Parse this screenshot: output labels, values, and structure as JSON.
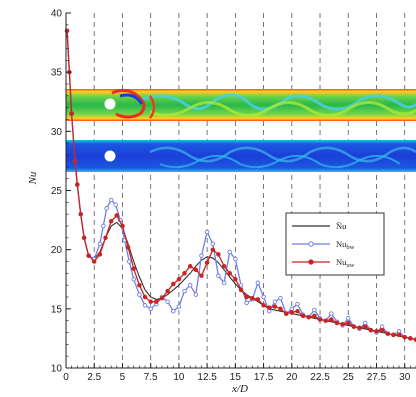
{
  "chart_data": {
    "type": "line",
    "xlabel": "x/D",
    "ylabel": "Nu",
    "xlim": [
      0,
      31
    ],
    "ylim": [
      10,
      40
    ],
    "x_ticks": [
      "0",
      "2.5",
      "5",
      "7.5",
      "10",
      "12.5",
      "15",
      "17.5",
      "20",
      "22.5",
      "25",
      "27.5",
      "30"
    ],
    "y_ticks": [
      "10",
      "15",
      "20",
      "25",
      "30",
      "35",
      "40"
    ],
    "vertical_dashed_gridlines_at": [
      2.5,
      5,
      7.5,
      10,
      12.5,
      15,
      17.5,
      20,
      22.5,
      25,
      27.5,
      30
    ],
    "legend": {
      "placement": "right",
      "entries": [
        {
          "label": "N̄u",
          "color": "#333333",
          "marker": "none"
        },
        {
          "label": "Nu",
          "sub": "bw",
          "color": "#6f7fe6",
          "marker": "circle-open"
        },
        {
          "label": "Nu",
          "sub": "uw",
          "color": "#cc2222",
          "marker": "circle-filled"
        }
      ]
    },
    "series": [
      {
        "key": "mean",
        "color": "#333333",
        "x": [
          0.1,
          0.3,
          0.5,
          0.8,
          1.0,
          1.3,
          1.6,
          2.0,
          2.5,
          3.0,
          3.5,
          4.0,
          4.5,
          5.0,
          5.5,
          6.0,
          6.5,
          7.0,
          7.5,
          8.0,
          8.5,
          9.0,
          9.5,
          10.0,
          10.5,
          11.0,
          11.5,
          12.0,
          12.5,
          13.0,
          13.5,
          14.0,
          14.5,
          15.0,
          15.5,
          16.0,
          16.5,
          17.0,
          17.5,
          18.0,
          19.0,
          20.0,
          21.0,
          22.0,
          23.0,
          24.0,
          25.0,
          26.0,
          27.0,
          28.0,
          29.0,
          30.0,
          31.0
        ],
        "y": [
          38.5,
          35.0,
          31.5,
          27.5,
          25.5,
          23.0,
          21.0,
          19.5,
          19.2,
          19.8,
          21.0,
          22.0,
          22.3,
          21.8,
          20.5,
          19.0,
          17.7,
          16.6,
          16.0,
          15.8,
          15.9,
          16.2,
          16.6,
          17.0,
          17.5,
          18.0,
          18.6,
          19.1,
          19.4,
          19.3,
          18.9,
          18.3,
          17.7,
          17.1,
          16.6,
          16.2,
          15.9,
          15.6,
          15.3,
          15.0,
          14.8,
          14.6,
          14.4,
          14.2,
          14.0,
          13.8,
          13.6,
          13.4,
          13.2,
          13.0,
          12.8,
          12.6,
          12.4
        ]
      },
      {
        "key": "bw",
        "color": "#6f7fe6",
        "x": [
          0.1,
          0.3,
          0.5,
          0.8,
          1.0,
          1.3,
          1.6,
          2.0,
          2.5,
          3.0,
          3.3,
          3.6,
          4.0,
          4.4,
          4.8,
          5.2,
          5.6,
          6.0,
          6.5,
          7.0,
          7.5,
          8.0,
          8.5,
          9.0,
          9.5,
          10.0,
          10.5,
          11.0,
          11.5,
          12.0,
          12.5,
          13.0,
          13.5,
          14.0,
          14.5,
          15.0,
          15.5,
          16.0,
          16.5,
          17.0,
          17.5,
          18.0,
          18.5,
          19.0,
          19.5,
          20.0,
          20.5,
          21.0,
          21.5,
          22.0,
          22.5,
          23.0,
          23.5,
          24.0,
          24.5,
          25.0,
          25.5,
          26.0,
          26.5,
          27.0,
          27.5,
          28.0,
          28.5,
          29.0,
          29.5,
          30.0,
          30.5,
          31.0
        ],
        "y": [
          38.5,
          35.0,
          31.5,
          27.5,
          25.5,
          23.0,
          21.0,
          19.5,
          19.2,
          20.5,
          22.0,
          23.5,
          24.2,
          23.8,
          22.5,
          20.8,
          19.0,
          17.5,
          16.2,
          15.3,
          15.0,
          15.4,
          16.0,
          15.6,
          14.8,
          15.2,
          16.5,
          17.0,
          16.2,
          19.5,
          21.5,
          20.5,
          17.8,
          17.2,
          19.8,
          19.2,
          17.0,
          15.5,
          15.8,
          17.2,
          16.0,
          14.8,
          15.6,
          15.9,
          14.6,
          15.0,
          15.4,
          14.5,
          14.3,
          14.9,
          14.2,
          14.0,
          14.6,
          13.9,
          13.6,
          14.2,
          13.5,
          13.3,
          13.8,
          13.2,
          13.0,
          13.5,
          12.9,
          12.8,
          13.1,
          12.6,
          12.5,
          12.4
        ]
      },
      {
        "key": "uw",
        "color": "#cc2222",
        "x": [
          0.1,
          0.3,
          0.5,
          0.8,
          1.0,
          1.3,
          1.6,
          2.0,
          2.5,
          3.0,
          3.5,
          4.0,
          4.5,
          5.0,
          5.5,
          6.0,
          6.5,
          7.0,
          7.5,
          8.0,
          8.5,
          9.0,
          9.5,
          10.0,
          10.5,
          11.0,
          11.5,
          12.0,
          12.5,
          13.0,
          13.5,
          14.0,
          14.5,
          15.0,
          15.5,
          16.0,
          16.5,
          17.0,
          17.5,
          18.0,
          18.5,
          19.0,
          19.5,
          20.0,
          20.5,
          21.0,
          21.5,
          22.0,
          22.5,
          23.0,
          23.5,
          24.0,
          24.5,
          25.0,
          25.5,
          26.0,
          26.5,
          27.0,
          27.5,
          28.0,
          28.5,
          29.0,
          29.5,
          30.0,
          30.5,
          31.0
        ],
        "y": [
          38.5,
          35.0,
          31.5,
          27.5,
          25.5,
          23.0,
          21.0,
          19.5,
          19.0,
          19.6,
          21.0,
          22.4,
          22.9,
          22.0,
          20.2,
          18.4,
          17.0,
          16.0,
          15.6,
          15.6,
          15.9,
          16.5,
          17.1,
          17.5,
          18.0,
          18.6,
          18.3,
          17.8,
          18.9,
          20.0,
          19.6,
          18.6,
          18.0,
          17.5,
          16.6,
          16.0,
          15.9,
          15.8,
          15.3,
          15.1,
          15.2,
          15.0,
          14.6,
          14.7,
          14.8,
          14.4,
          14.3,
          14.4,
          14.1,
          14.0,
          14.1,
          13.8,
          13.7,
          13.8,
          13.5,
          13.4,
          13.5,
          13.2,
          13.1,
          13.2,
          12.9,
          12.8,
          12.8,
          12.6,
          12.5,
          12.4
        ]
      }
    ]
  }
}
